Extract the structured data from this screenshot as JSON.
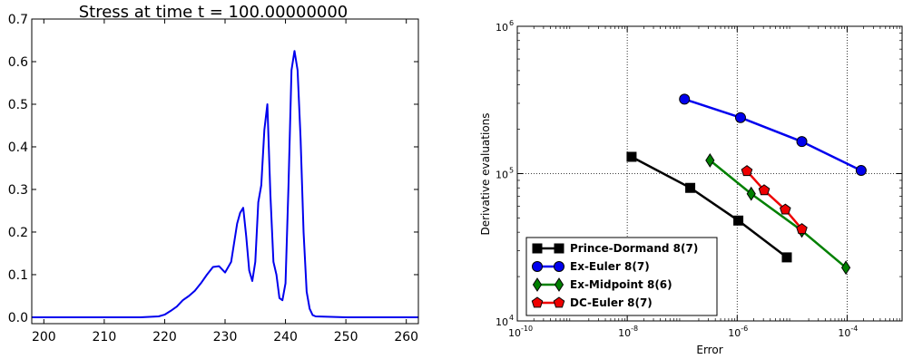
{
  "chart_data": [
    {
      "type": "line",
      "title": "Stress at time t =   100.00000000",
      "xlim": [
        198,
        262
      ],
      "ylim": [
        -0.015,
        0.7
      ],
      "xticks": [
        200,
        210,
        220,
        230,
        240,
        250,
        260
      ],
      "yticks": [
        0.0,
        0.1,
        0.2,
        0.3,
        0.4,
        0.5,
        0.6,
        0.7
      ],
      "xtick_labels": [
        "200",
        "210",
        "220",
        "230",
        "240",
        "250",
        "260"
      ],
      "ytick_labels": [
        "0.0",
        "0.1",
        "0.2",
        "0.3",
        "0.4",
        "0.5",
        "0.6",
        "0.7"
      ],
      "grid": false,
      "color": "#0000ee",
      "series": [
        {
          "x": [
            198,
            210,
            216,
            219,
            220,
            221,
            222,
            223,
            224,
            225,
            226,
            227,
            228,
            229,
            230,
            231,
            232,
            232.5,
            233,
            233.5,
            234,
            234.5,
            235,
            235.5,
            236,
            236.5,
            237,
            237.5,
            238,
            238.5,
            239,
            239.5,
            240,
            240.5,
            241,
            241.5,
            242,
            242.5,
            243,
            243.5,
            244,
            244.5,
            245,
            250,
            262
          ],
          "y": [
            0.0,
            0.0,
            0.0,
            0.002,
            0.006,
            0.015,
            0.025,
            0.04,
            0.05,
            0.062,
            0.08,
            0.1,
            0.118,
            0.12,
            0.105,
            0.13,
            0.22,
            0.245,
            0.257,
            0.19,
            0.11,
            0.085,
            0.13,
            0.27,
            0.31,
            0.44,
            0.5,
            0.29,
            0.13,
            0.1,
            0.045,
            0.04,
            0.08,
            0.31,
            0.58,
            0.625,
            0.58,
            0.42,
            0.2,
            0.06,
            0.02,
            0.005,
            0.002,
            0.0,
            0.0
          ]
        }
      ]
    },
    {
      "type": "line",
      "title": "",
      "xlabel": "Error",
      "ylabel": "Derivative evaluations",
      "xscale": "log",
      "yscale": "log",
      "xlim": [
        1e-10,
        0.001
      ],
      "ylim": [
        10000,
        1000000
      ],
      "grid": true,
      "xticks": [
        {
          "mant": "10",
          "exp": "-10",
          "value": -10
        },
        {
          "mant": "10",
          "exp": "-8",
          "value": -8
        },
        {
          "mant": "10",
          "exp": "-6",
          "value": -6
        },
        {
          "mant": "10",
          "exp": "-4",
          "value": -4
        }
      ],
      "yticks": [
        {
          "mant": "10",
          "exp": "4",
          "value": 4
        },
        {
          "mant": "10",
          "exp": "5",
          "value": 5
        },
        {
          "mant": "10",
          "exp": "6",
          "value": 6
        }
      ],
      "legend_position": "lower-left",
      "series": [
        {
          "name": "Prince-Dormand 8(7)",
          "color": "#000000",
          "marker": "square",
          "x": [
            1.2e-08,
            1.4e-07,
            1.05e-06,
            8e-06
          ],
          "y": [
            130000,
            80000,
            48000,
            27000
          ]
        },
        {
          "name": "Ex-Euler 8(7)",
          "color": "#0000ee",
          "marker": "circle",
          "x": [
            1.1e-07,
            1.15e-06,
            1.5e-05,
            0.00018
          ],
          "y": [
            320000,
            240000,
            165000,
            105000
          ]
        },
        {
          "name": "Ex-Midpoint 8(6)",
          "color": "#008000",
          "marker": "diamond",
          "x": [
            3.2e-07,
            1.8e-06,
            1.5e-05,
            9.5e-05
          ],
          "y": [
            123000,
            73000,
            41000,
            23000
          ]
        },
        {
          "name": "DC-Euler 8(7)",
          "color": "#ee0000",
          "marker": "pentagon",
          "x": [
            1.5e-06,
            3.1e-06,
            7.5e-06,
            1.5e-05
          ],
          "y": [
            104000,
            77000,
            57000,
            42000
          ]
        }
      ]
    }
  ]
}
